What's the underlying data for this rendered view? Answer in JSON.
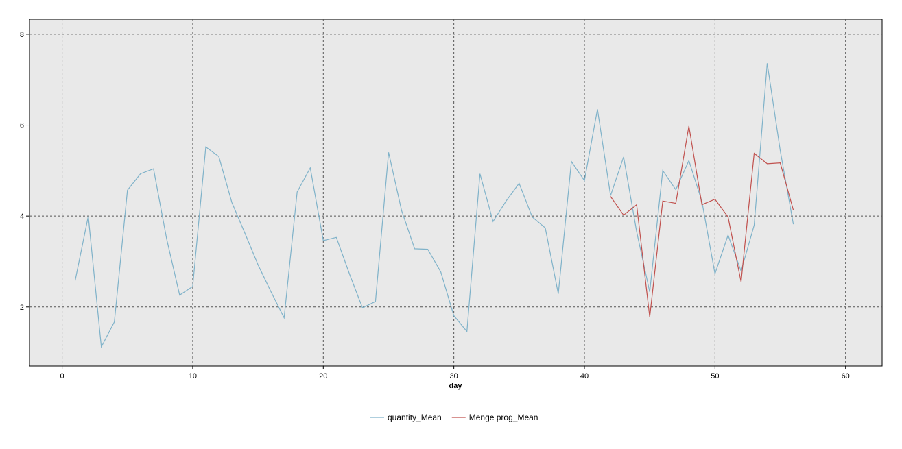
{
  "chart_data": {
    "type": "line",
    "title": "",
    "xlabel": "day",
    "ylabel": "",
    "xlim": [
      -2.5,
      62.8
    ],
    "ylim": [
      0.7,
      8.33
    ],
    "x_ticks": [
      0,
      10,
      20,
      30,
      40,
      50,
      60
    ],
    "y_ticks": [
      2,
      4,
      6,
      8
    ],
    "x_tick_labels": [
      "0",
      "10",
      "20",
      "30",
      "40",
      "50",
      "60"
    ],
    "y_tick_labels": [
      "2",
      "4",
      "6",
      "8"
    ],
    "grid": true,
    "grid_style": "dashed",
    "plot_background": "#e9e9e9",
    "legend_position": "bottom-center",
    "series": [
      {
        "name": "quantity_Mean",
        "color": "#7fb2c9",
        "points": [
          [
            1,
            2.58
          ],
          [
            2,
            4.0
          ],
          [
            3,
            1.12
          ],
          [
            4,
            1.67
          ],
          [
            5,
            4.57
          ],
          [
            6,
            4.93
          ],
          [
            7,
            5.04
          ],
          [
            8,
            3.5
          ],
          [
            9,
            2.26
          ],
          [
            10,
            2.45
          ],
          [
            11,
            5.52
          ],
          [
            12,
            5.31
          ],
          [
            13,
            4.3
          ],
          [
            14,
            3.62
          ],
          [
            15,
            2.93
          ],
          [
            16,
            2.33
          ],
          [
            17,
            1.76
          ],
          [
            18,
            4.53
          ],
          [
            19,
            5.06
          ],
          [
            20,
            3.46
          ],
          [
            21,
            3.53
          ],
          [
            22,
            2.73
          ],
          [
            23,
            1.98
          ],
          [
            24,
            2.12
          ],
          [
            25,
            5.4
          ],
          [
            26,
            4.12
          ],
          [
            27,
            3.28
          ],
          [
            28,
            3.27
          ],
          [
            29,
            2.77
          ],
          [
            30,
            1.81
          ],
          [
            31,
            1.46
          ],
          [
            32,
            4.93
          ],
          [
            33,
            3.88
          ],
          [
            34,
            4.33
          ],
          [
            35,
            4.72
          ],
          [
            36,
            3.98
          ],
          [
            37,
            3.74
          ],
          [
            38,
            2.29
          ],
          [
            39,
            5.2
          ],
          [
            40,
            4.78
          ],
          [
            41,
            6.35
          ],
          [
            42,
            4.45
          ],
          [
            43,
            5.3
          ],
          [
            44,
            3.66
          ],
          [
            45,
            2.33
          ],
          [
            46,
            5.0
          ],
          [
            47,
            4.58
          ],
          [
            48,
            5.22
          ],
          [
            49,
            4.32
          ],
          [
            50,
            2.73
          ],
          [
            51,
            3.58
          ],
          [
            52,
            2.79
          ],
          [
            53,
            3.8
          ],
          [
            54,
            7.36
          ],
          [
            55,
            5.44
          ],
          [
            56,
            3.82
          ]
        ]
      },
      {
        "name": "Menge prog_Mean",
        "color": "#c0504d",
        "points": [
          [
            42,
            4.43
          ],
          [
            43,
            4.02
          ],
          [
            44,
            4.25
          ],
          [
            45,
            1.78
          ],
          [
            46,
            4.33
          ],
          [
            47,
            4.28
          ],
          [
            48,
            5.98
          ],
          [
            49,
            4.25
          ],
          [
            50,
            4.37
          ],
          [
            51,
            3.98
          ],
          [
            52,
            2.55
          ],
          [
            53,
            5.38
          ],
          [
            54,
            5.15
          ],
          [
            55,
            5.17
          ],
          [
            56,
            4.13
          ]
        ]
      }
    ]
  }
}
